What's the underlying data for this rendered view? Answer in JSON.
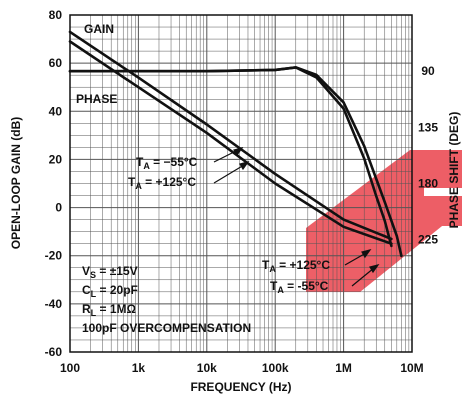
{
  "chart_data": {
    "type": "line",
    "title": "",
    "xlabel": "FREQUENCY (Hz)",
    "ylabel": "OPEN-LOOP GAIN (dB)",
    "y2label": "PHASE SHIFT (DEG)",
    "xscale": "log",
    "xlim": [
      100,
      10000000
    ],
    "ylim": [
      -60,
      80
    ],
    "y2lim": [
      315,
      45
    ],
    "grid": true,
    "x_ticks": [
      "100",
      "1k",
      "10k",
      "100k",
      "1M",
      "10M"
    ],
    "y_ticks": [
      "80",
      "60",
      "40",
      "20",
      "0",
      "-20",
      "-40",
      "-60"
    ],
    "y2_ticks": [
      "90",
      "135",
      "180",
      "225"
    ],
    "series": [
      {
        "name": "GAIN",
        "temp": "TA = -55°C",
        "axis": "left",
        "x": [
          100,
          1000,
          10000,
          100000,
          1000000,
          5000000
        ],
        "y": [
          73,
          54,
          34.5,
          14,
          -5,
          -13
        ]
      },
      {
        "name": "GAIN",
        "temp": "TA = +125°C",
        "axis": "left",
        "x": [
          100,
          1000,
          10000,
          100000,
          1000000,
          5000000
        ],
        "y": [
          69,
          50,
          31,
          10,
          -8,
          -15
        ]
      },
      {
        "name": "PHASE",
        "temp": "TA = -55°C",
        "axis": "right",
        "x": [
          100,
          10000,
          100000,
          200000,
          400000,
          1000000,
          2000000,
          3000000,
          4000000,
          5000000
        ],
        "y": [
          90,
          90,
          89,
          87,
          95,
          120,
          160,
          190,
          210,
          230
        ]
      },
      {
        "name": "PHASE",
        "temp": "TA = +125°C",
        "axis": "right",
        "x": [
          100,
          10000,
          100000,
          200000,
          400000,
          1000000,
          2000000,
          4000000,
          6000000,
          7000000
        ],
        "y": [
          90,
          90,
          89,
          87,
          93,
          115,
          150,
          195,
          222,
          238
        ]
      }
    ],
    "labels": {
      "gain": "GAIN",
      "phase": "PHASE",
      "ta_prefix": "T",
      "ta_sub": "A",
      "gain_low": " = −55°C",
      "gain_high": " = +125°C",
      "phase_high": " = +125°C",
      "phase_low": " = -55°C"
    },
    "conditions": {
      "vs_prefix": "V",
      "vs_sub": "S",
      "vs_value": " = ±15V",
      "cl_prefix": "C",
      "cl_sub": "L",
      "cl_value": " = 20pF",
      "rl_prefix": "R",
      "rl_sub": "L",
      "rl_value": " = 1MΩ",
      "overcomp": "100pF OVERCOMPENSATION"
    },
    "colors": {
      "line": "#111111",
      "grid": "#555555",
      "watermark": "#e8323c"
    }
  }
}
